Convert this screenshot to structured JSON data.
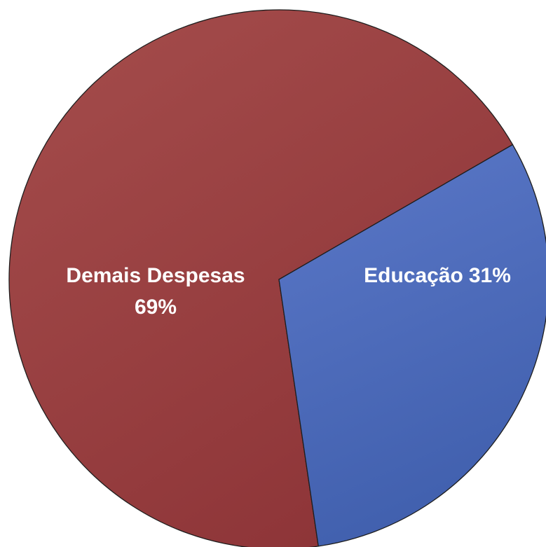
{
  "chart_data": {
    "type": "pie",
    "title": "",
    "slices": [
      {
        "label": "Demais Despesas",
        "percent_label": "69%",
        "value": 69,
        "color": "#9b3f3d"
      },
      {
        "label": "Educação",
        "percent_label": "31%",
        "value": 31,
        "color": "#4a68b8"
      }
    ],
    "start_angle_deg": 60,
    "direction": "clockwise",
    "legend": "none",
    "data_labels": "inside"
  }
}
